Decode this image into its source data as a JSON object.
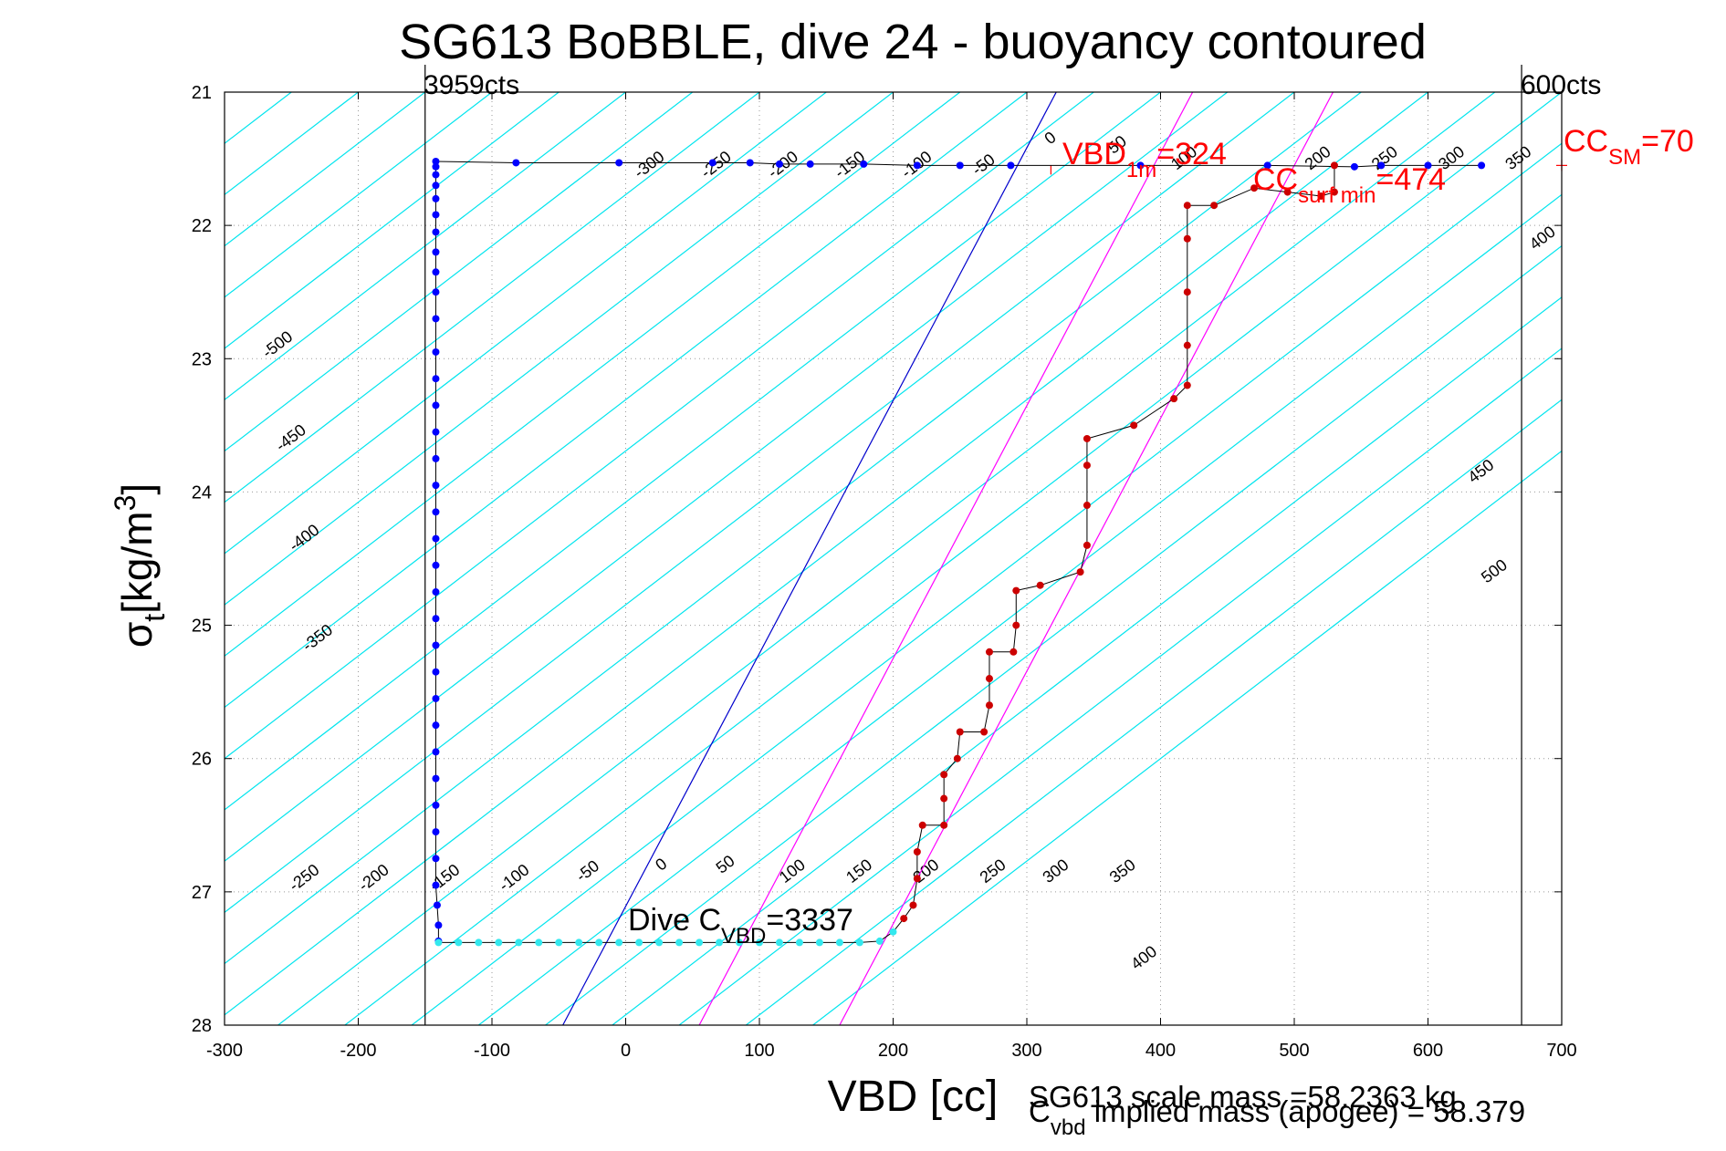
{
  "chart_data": {
    "type": "scatter",
    "title": "SG613 BoBBLE, dive 24 - buoyancy contoured",
    "xlabel": "VBD [cc]",
    "ylabel_main": "σ",
    "ylabel_sub": "t",
    "ylabel_units": "[kg/m",
    "ylabel_sup": "3",
    "ylabel_close": "]",
    "xlim": [
      -300,
      700
    ],
    "ylim": [
      21,
      28
    ],
    "y_reversed": true,
    "grid": true,
    "xticks": [
      -300,
      -200,
      -100,
      0,
      100,
      200,
      300,
      400,
      500,
      600,
      700
    ],
    "yticks": [
      21,
      22,
      23,
      24,
      25,
      26,
      27,
      28
    ],
    "xtick_labels": [
      "-300",
      "-200",
      "-100",
      "0",
      "100",
      "200",
      "300",
      "400",
      "500",
      "600",
      "700"
    ],
    "ytick_labels": [
      "21",
      "22",
      "23",
      "24",
      "25",
      "26",
      "27",
      "28"
    ],
    "colors": {
      "contour": "#00e5ee",
      "sm_lines": "#ff00ff",
      "cvbd_line": "#0000cc",
      "annotation": "#ff0000",
      "axis": "#000000"
    },
    "limits": {
      "left_vbd": -150,
      "left_label": "3959cts",
      "right_vbd": 670,
      "right_label": "600cts"
    },
    "contours": {
      "slope_cc_per_sigma": 130,
      "levels": [
        -650,
        -600,
        -550,
        -500,
        -450,
        -400,
        -350,
        -300,
        -250,
        -200,
        -150,
        -100,
        -50,
        0,
        50,
        100,
        150,
        200,
        250,
        300,
        350,
        400,
        450,
        500,
        550,
        600,
        650,
        700,
        750,
        800,
        850,
        900,
        950,
        1000,
        1050
      ],
      "labels_top": [
        {
          "text": "-300",
          "x": 18,
          "y": 21.55
        },
        {
          "text": "-250",
          "x": 68,
          "y": 21.55
        },
        {
          "text": "-200",
          "x": 118,
          "y": 21.55
        },
        {
          "text": "-150",
          "x": 168,
          "y": 21.55
        },
        {
          "text": "-100",
          "x": 218,
          "y": 21.55
        },
        {
          "text": "-50",
          "x": 268,
          "y": 21.55
        },
        {
          "text": "0",
          "x": 318,
          "y": 21.35
        },
        {
          "text": "50",
          "x": 368,
          "y": 21.4
        },
        {
          "text": "100",
          "x": 418,
          "y": 21.5
        },
        {
          "text": "200",
          "x": 518,
          "y": 21.5
        },
        {
          "text": "250",
          "x": 568,
          "y": 21.5
        },
        {
          "text": "300",
          "x": 618,
          "y": 21.5
        },
        {
          "text": "350",
          "x": 668,
          "y": 21.5
        },
        {
          "text": "400",
          "x": 686,
          "y": 22.1
        }
      ],
      "labels_left": [
        {
          "text": "-500",
          "x": -260,
          "y": 22.9
        },
        {
          "text": "-450",
          "x": -250,
          "y": 23.6
        },
        {
          "text": "-400",
          "x": -240,
          "y": 24.35
        },
        {
          "text": "-350",
          "x": -230,
          "y": 25.1
        }
      ],
      "labels_bottom": [
        {
          "text": "-250",
          "x": -240,
          "y": 26.9
        },
        {
          "text": "-200",
          "x": -188,
          "y": 26.9
        },
        {
          "text": "-150",
          "x": -135,
          "y": 26.9
        },
        {
          "text": "-100",
          "x": -83,
          "y": 26.9
        },
        {
          "text": "-50",
          "x": -28,
          "y": 26.85
        },
        {
          "text": "0",
          "x": 27,
          "y": 26.8
        },
        {
          "text": "50",
          "x": 75,
          "y": 26.8
        },
        {
          "text": "100",
          "x": 125,
          "y": 26.85
        },
        {
          "text": "150",
          "x": 175,
          "y": 26.85
        },
        {
          "text": "200",
          "x": 225,
          "y": 26.85
        },
        {
          "text": "250",
          "x": 275,
          "y": 26.85
        },
        {
          "text": "300",
          "x": 322,
          "y": 26.85
        },
        {
          "text": "350",
          "x": 372,
          "y": 26.85
        },
        {
          "text": "400",
          "x": 388,
          "y": 27.5
        }
      ],
      "labels_right": [
        {
          "text": "450",
          "x": 640,
          "y": 23.85
        },
        {
          "text": "500",
          "x": 650,
          "y": 24.6
        }
      ]
    },
    "sm_lines": [
      {
        "vbd_at_bottom": 55,
        "vbd_at_top": 424
      },
      {
        "vbd_at_bottom": 160,
        "vbd_at_top": 529
      }
    ],
    "cvbd_line": {
      "vbd_at_bottom": -47,
      "vbd_at_top": 322
    },
    "series": [
      {
        "name": "dive",
        "color": "#0000ff",
        "points": [
          [
            -142,
            21.52
          ],
          [
            -142,
            21.56
          ],
          [
            -142,
            21.62
          ],
          [
            -142,
            21.7
          ],
          [
            -142,
            21.8
          ],
          [
            -142,
            21.92
          ],
          [
            -142,
            22.05
          ],
          [
            -142,
            22.2
          ],
          [
            -142,
            22.35
          ],
          [
            -142,
            22.5
          ],
          [
            -142,
            22.7
          ],
          [
            -142,
            22.95
          ],
          [
            -142,
            23.15
          ],
          [
            -142,
            23.35
          ],
          [
            -142,
            23.55
          ],
          [
            -142,
            23.75
          ],
          [
            -142,
            23.95
          ],
          [
            -142,
            24.15
          ],
          [
            -142,
            24.35
          ],
          [
            -142,
            24.55
          ],
          [
            -142,
            24.75
          ],
          [
            -142,
            24.95
          ],
          [
            -142,
            25.15
          ],
          [
            -142,
            25.35
          ],
          [
            -142,
            25.55
          ],
          [
            -142,
            25.75
          ],
          [
            -142,
            25.95
          ],
          [
            -142,
            26.15
          ],
          [
            -142,
            26.35
          ],
          [
            -142,
            26.55
          ],
          [
            -142,
            26.75
          ],
          [
            -142,
            26.95
          ],
          [
            -141,
            27.1
          ],
          [
            -140,
            27.25
          ],
          [
            -140,
            27.37
          ]
        ]
      },
      {
        "name": "bottom",
        "color": "#33e8ee",
        "points": [
          [
            -140,
            27.38
          ],
          [
            -125,
            27.38
          ],
          [
            -110,
            27.38
          ],
          [
            -95,
            27.38
          ],
          [
            -80,
            27.38
          ],
          [
            -65,
            27.38
          ],
          [
            -50,
            27.38
          ],
          [
            -35,
            27.38
          ],
          [
            -20,
            27.38
          ],
          [
            -5,
            27.38
          ],
          [
            10,
            27.38
          ],
          [
            25,
            27.38
          ],
          [
            40,
            27.38
          ],
          [
            55,
            27.38
          ],
          [
            70,
            27.38
          ],
          [
            85,
            27.38
          ],
          [
            100,
            27.38
          ],
          [
            115,
            27.38
          ],
          [
            130,
            27.38
          ],
          [
            145,
            27.38
          ],
          [
            160,
            27.38
          ],
          [
            175,
            27.38
          ],
          [
            190,
            27.37
          ],
          [
            200,
            27.3
          ]
        ]
      },
      {
        "name": "ascent",
        "color": "#cc0000",
        "points": [
          [
            208,
            27.2
          ],
          [
            215,
            27.1
          ],
          [
            218,
            26.9
          ],
          [
            218,
            26.7
          ],
          [
            222,
            26.5
          ],
          [
            238,
            26.5
          ],
          [
            238,
            26.3
          ],
          [
            238,
            26.12
          ],
          [
            248,
            26.0
          ],
          [
            250,
            25.8
          ],
          [
            268,
            25.8
          ],
          [
            272,
            25.6
          ],
          [
            272,
            25.4
          ],
          [
            272,
            25.2
          ],
          [
            290,
            25.2
          ],
          [
            292,
            25.0
          ],
          [
            292,
            24.74
          ],
          [
            310,
            24.7
          ],
          [
            340,
            24.6
          ],
          [
            345,
            24.4
          ],
          [
            345,
            24.1
          ],
          [
            345,
            23.8
          ],
          [
            345,
            23.6
          ],
          [
            380,
            23.5
          ],
          [
            410,
            23.3
          ],
          [
            420,
            23.2
          ],
          [
            420,
            22.9
          ],
          [
            420,
            22.5
          ],
          [
            420,
            22.1
          ],
          [
            420,
            21.85
          ],
          [
            440,
            21.85
          ],
          [
            470,
            21.72
          ],
          [
            495,
            21.75
          ],
          [
            520,
            21.78
          ],
          [
            530,
            21.75
          ],
          [
            530,
            21.55
          ]
        ]
      },
      {
        "name": "surface",
        "color": "#0000ff",
        "points": [
          [
            -82,
            21.53
          ],
          [
            -5,
            21.53
          ],
          [
            65,
            21.53
          ],
          [
            93,
            21.53
          ],
          [
            115,
            21.54
          ],
          [
            138,
            21.54
          ],
          [
            178,
            21.54
          ],
          [
            218,
            21.55
          ],
          [
            250,
            21.55
          ],
          [
            288,
            21.55
          ],
          [
            385,
            21.55
          ],
          [
            480,
            21.55
          ],
          [
            545,
            21.56
          ],
          [
            565,
            21.55
          ],
          [
            600,
            21.55
          ],
          [
            640,
            21.55
          ]
        ]
      }
    ],
    "annotations": {
      "vbd1m_label": "VBD",
      "vbd1m_sub": "1m",
      "vbd1m_value": "=324",
      "ccsurf_label": "CC",
      "ccsurf_sub": "surf min",
      "ccsurf_value": "=474",
      "ccsm_label": "CC",
      "ccsm_sub": "SM",
      "ccsm_value": "=70",
      "dive_label": "Dive C",
      "dive_sub": "VBD",
      "dive_value": "=3337",
      "mass_line1": "SG613 scale mass =58.2363 kg",
      "mass_line2_c": "C",
      "mass_line2_sub": "vbd",
      "mass_line2_rest": " implied mass (apogee) = 58.379"
    }
  }
}
